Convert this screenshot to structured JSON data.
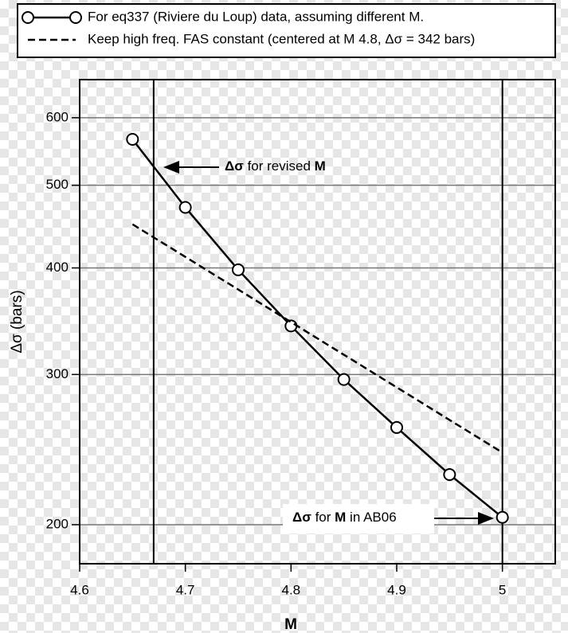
{
  "chart_data": {
    "type": "line",
    "title_legend": null,
    "xlabel": "M",
    "ylabel": "Δσ (bars)",
    "xlim": [
      4.6,
      5.05
    ],
    "ylim": [
      180,
      665
    ],
    "log_y": true,
    "grid": true,
    "xticks": [
      4.6,
      4.7,
      4.8,
      4.9,
      5
    ],
    "yticks": [
      200,
      300,
      400,
      500,
      600
    ],
    "reference_lines": [
      4.67,
      5
    ],
    "series": [
      {
        "name": "For eq337 (Riviere du Loup) data, assuming different M.",
        "color": "#000000",
        "style": "solid-markers",
        "x": [
          4.65,
          4.7,
          4.75,
          4.8,
          4.85,
          4.9,
          4.95,
          5.0
        ],
        "values": [
          566,
          471,
          398,
          342,
          296,
          260,
          229,
          204
        ]
      },
      {
        "name": "Keep high freq. FAS constant (centered at M 4.8, Δσ = 342 bars)",
        "color": "#000000",
        "style": "dashed",
        "x": [
          4.65,
          5.0
        ],
        "values": [
          450,
          243
        ]
      }
    ],
    "annotations": [
      [
        "Δσ",
        " for revised ",
        "M"
      ],
      [
        "Δσ",
        " for ",
        "M",
        " in AB06"
      ]
    ]
  }
}
